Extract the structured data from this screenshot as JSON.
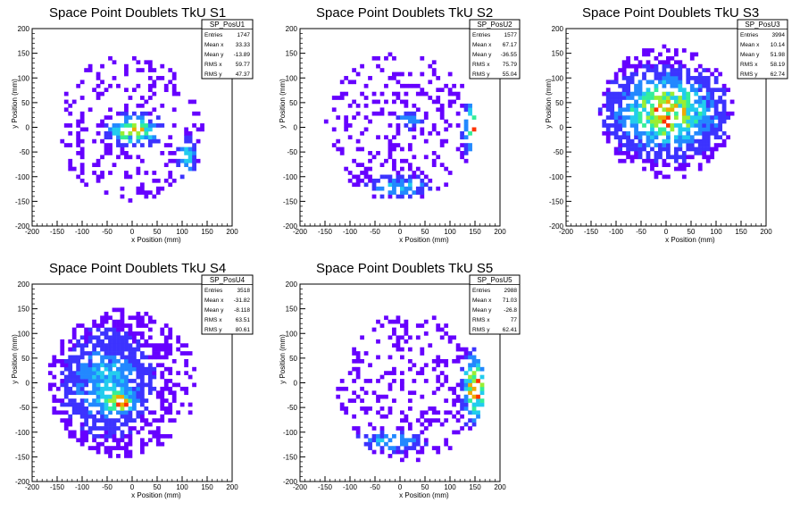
{
  "chart_data": [
    {
      "type": "heatmap",
      "title": "Space Point Doublets TkU S1",
      "xlabel": "x Position (mm)",
      "ylabel": "y Position (mm)",
      "xlim": [
        -200,
        200
      ],
      "ylim": [
        -200,
        200
      ],
      "x_ticks": [
        "-200",
        "-150",
        "-100",
        "-50",
        "0",
        "50",
        "100",
        "150",
        "200"
      ],
      "y_ticks": [
        "-200",
        "-150",
        "-100",
        "-50",
        "0",
        "50",
        "100",
        "150",
        "200"
      ],
      "stats": {
        "name": "SP_PosU1",
        "rows": [
          [
            "Entries",
            "1747"
          ],
          [
            "Mean x",
            "33.33"
          ],
          [
            "Mean y",
            "-13.89"
          ],
          [
            "RMS x",
            "59.77"
          ],
          [
            "RMS y",
            "47.37"
          ]
        ]
      },
      "hotspots": [
        {
          "x": 5,
          "y": -5,
          "weight": 6,
          "sx": 30,
          "sy": 18
        },
        {
          "x": 110,
          "y": -60,
          "weight": 3,
          "sx": 12,
          "sy": 25
        }
      ],
      "fill": {
        "center": [
          0,
          0
        ],
        "radius": 150,
        "density": 0.35
      }
    },
    {
      "type": "heatmap",
      "title": "Space Point Doublets TkU S2",
      "xlabel": "x Position (mm)",
      "ylabel": "y Position (mm)",
      "xlim": [
        -200,
        200
      ],
      "ylim": [
        -200,
        200
      ],
      "x_ticks": [
        "-200",
        "-150",
        "-100",
        "-50",
        "0",
        "50",
        "100",
        "150",
        "200"
      ],
      "y_ticks": [
        "-200",
        "-150",
        "-100",
        "-50",
        "0",
        "50",
        "100",
        "150",
        "200"
      ],
      "stats": {
        "name": "SP_PosU2",
        "rows": [
          [
            "Entries",
            "1577"
          ],
          [
            "Mean x",
            "67.17"
          ],
          [
            "Mean y",
            "-36.55"
          ],
          [
            "RMS x",
            "75.79"
          ],
          [
            "RMS y",
            "55.04"
          ]
        ]
      },
      "hotspots": [
        {
          "x": 150,
          "y": 0,
          "weight": 7,
          "sx": 12,
          "sy": 35
        },
        {
          "x": 20,
          "y": 15,
          "weight": 3,
          "sx": 15,
          "sy": 10
        },
        {
          "x": 0,
          "y": -120,
          "weight": 3,
          "sx": 40,
          "sy": 12
        }
      ],
      "fill": {
        "center": [
          0,
          0
        ],
        "radius": 150,
        "density": 0.35
      }
    },
    {
      "type": "heatmap",
      "title": "Space Point Doublets TkU S3",
      "xlabel": "x Position (mm)",
      "ylabel": "y Position (mm)",
      "xlim": [
        -200,
        200
      ],
      "ylim": [
        -200,
        200
      ],
      "x_ticks": [
        "-200",
        "-150",
        "-100",
        "-50",
        "0",
        "50",
        "100",
        "150",
        "200"
      ],
      "y_ticks": [
        "-200",
        "-150",
        "-100",
        "-50",
        "0",
        "50",
        "100",
        "150",
        "200"
      ],
      "stats": {
        "name": "SP_PosU3",
        "rows": [
          [
            "Entries",
            "3994"
          ],
          [
            "Mean x",
            "10.14"
          ],
          [
            "Mean y",
            "51.98"
          ],
          [
            "RMS x",
            "58.19"
          ],
          [
            "RMS y",
            "62.74"
          ]
        ]
      },
      "hotspots": [
        {
          "x": 0,
          "y": 30,
          "weight": 6,
          "sx": 60,
          "sy": 45
        },
        {
          "x": 5,
          "y": 10,
          "weight": 4,
          "sx": 8,
          "sy": 8
        }
      ],
      "fill": {
        "center": [
          0,
          30
        ],
        "radius": 135,
        "density": 0.55
      }
    },
    {
      "type": "heatmap",
      "title": "Space Point Doublets TkU S4",
      "xlabel": "x Position (mm)",
      "ylabel": "y Position (mm)",
      "xlim": [
        -200,
        200
      ],
      "ylim": [
        -200,
        200
      ],
      "x_ticks": [
        "-200",
        "-150",
        "-100",
        "-50",
        "0",
        "50",
        "100",
        "150",
        "200"
      ],
      "y_ticks": [
        "-200",
        "-150",
        "-100",
        "-50",
        "0",
        "50",
        "100",
        "150",
        "200"
      ],
      "stats": {
        "name": "SP_PosU4",
        "rows": [
          [
            "Entries",
            "3518"
          ],
          [
            "Mean x",
            "-31.82"
          ],
          [
            "Mean y",
            "-8.118"
          ],
          [
            "RMS x",
            "63.51"
          ],
          [
            "RMS y",
            "80.61"
          ]
        ]
      },
      "hotspots": [
        {
          "x": -25,
          "y": -40,
          "weight": 6,
          "sx": 15,
          "sy": 12
        },
        {
          "x": -50,
          "y": 0,
          "weight": 3,
          "sx": 50,
          "sy": 60
        }
      ],
      "fill": {
        "center": [
          -20,
          0
        ],
        "radius": 150,
        "density": 0.6
      }
    },
    {
      "type": "heatmap",
      "title": "Space Point Doublets TkU S5",
      "xlabel": "x Position (mm)",
      "ylabel": "y Position (mm)",
      "xlim": [
        -200,
        200
      ],
      "ylim": [
        -200,
        200
      ],
      "x_ticks": [
        "-200",
        "-150",
        "-100",
        "-50",
        "0",
        "50",
        "100",
        "150",
        "200"
      ],
      "y_ticks": [
        "-200",
        "-150",
        "-100",
        "-50",
        "0",
        "50",
        "100",
        "150",
        "200"
      ],
      "stats": {
        "name": "SP_PosU5",
        "rows": [
          [
            "Entries",
            "2988"
          ],
          [
            "Mean x",
            "71.03"
          ],
          [
            "Mean y",
            "-26.8"
          ],
          [
            "RMS x",
            "77"
          ],
          [
            "RMS y",
            "62.41"
          ]
        ]
      },
      "hotspots": [
        {
          "x": 150,
          "y": -10,
          "weight": 7,
          "sx": 14,
          "sy": 40
        },
        {
          "x": -20,
          "y": -120,
          "weight": 3,
          "sx": 40,
          "sy": 12
        }
      ],
      "fill": {
        "center": [
          20,
          -10
        ],
        "radius": 150,
        "density": 0.4
      }
    }
  ],
  "palette": [
    "#6600ff",
    "#3c33ff",
    "#2288ff",
    "#22ccee",
    "#33ee99",
    "#99ee33",
    "#eeaa00",
    "#ff3300"
  ]
}
